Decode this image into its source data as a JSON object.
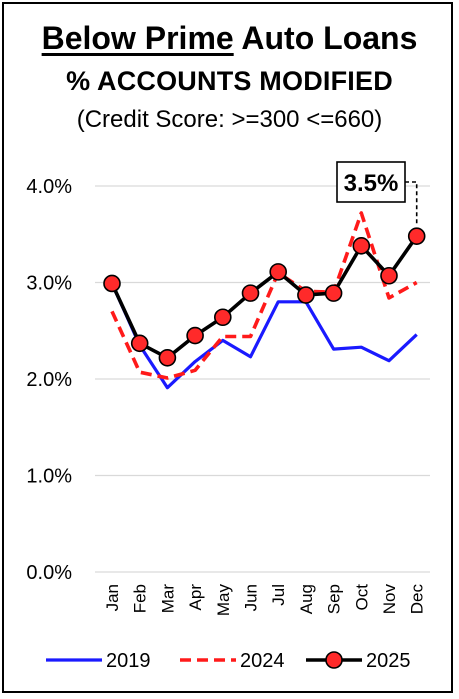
{
  "title_part1": "Below Prime",
  "title_part2": " Auto Loans",
  "subtitle": "% ACCOUNTS MODIFIED",
  "subtitle2": "(Credit Score: >=300 <=660)",
  "colors": {
    "s2019": "#1a1aff",
    "s2024": "#ff1a1a",
    "s2025": "#000000",
    "marker": "#ff2a2a",
    "grid": "#d9d9d9"
  },
  "chart_data": {
    "type": "line",
    "categories": [
      "Jan",
      "Feb",
      "Mar",
      "Apr",
      "May",
      "Jun",
      "Jul",
      "Aug",
      "Sep",
      "Oct",
      "Nov",
      "Dec"
    ],
    "ylim": [
      0,
      4.0
    ],
    "yticks": [
      "0.0%",
      "1.0%",
      "2.0%",
      "3.0%",
      "4.0%"
    ],
    "grid": true,
    "legend": "bottom",
    "series": [
      {
        "name": "2019",
        "values": [
          2.99,
          2.35,
          1.91,
          2.18,
          2.4,
          2.23,
          2.8,
          2.8,
          2.31,
          2.33,
          2.19,
          2.46
        ]
      },
      {
        "name": "2024",
        "values": [
          2.7,
          2.07,
          2.01,
          2.09,
          2.44,
          2.44,
          3.1,
          2.91,
          2.9,
          3.72,
          2.84,
          3.0
        ]
      },
      {
        "name": "2025",
        "values": [
          2.99,
          2.37,
          2.22,
          2.45,
          2.64,
          2.89,
          3.11,
          2.87,
          2.89,
          3.38,
          3.07,
          3.48
        ]
      }
    ],
    "annotation": {
      "text": "3.5%",
      "target": "Dec"
    }
  }
}
